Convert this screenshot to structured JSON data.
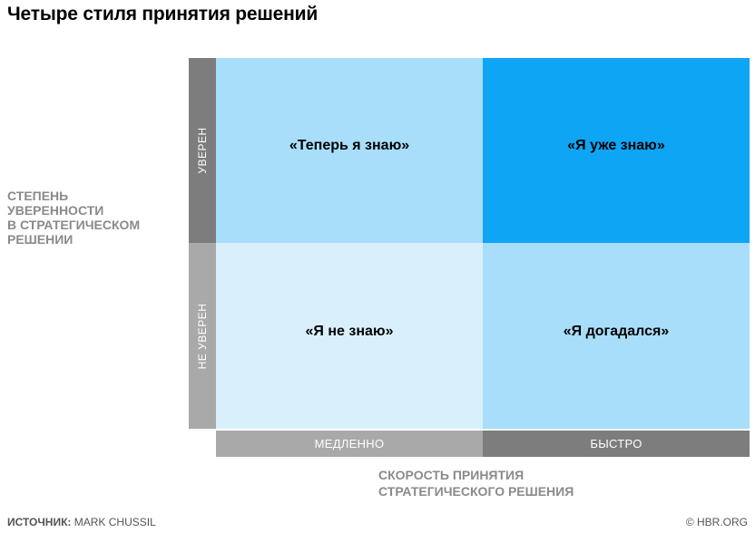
{
  "title": "Четыре стиля принятия решений",
  "y_axis": {
    "title_lines": [
      "СТЕПЕНЬ",
      "УВЕРЕННОСТИ",
      "В СТРАТЕГИЧЕСКОМ",
      "РЕШЕНИИ"
    ],
    "top_label": "УВЕРЕН",
    "bottom_label": "НЕ УВЕРЕН"
  },
  "x_axis": {
    "title_lines": [
      "СКОРОСТЬ ПРИНЯТИЯ",
      "СТРАТЕГИЧЕСКОГО РЕШЕНИЯ"
    ],
    "left_label": "МЕДЛЕННО",
    "right_label": "БЫСТРО"
  },
  "quadrants": {
    "top_left": "«Теперь я знаю»",
    "top_right": "«Я уже знаю»",
    "bottom_left": "«Я не знаю»",
    "bottom_right": "«Я догадался»"
  },
  "colors": {
    "light_blue": "#a8defa",
    "bright_blue": "#0ea5f5",
    "pale_blue": "#d9f0fc",
    "dark_gray": "#7d7d7d",
    "light_gray": "#a9a9a9"
  },
  "footer": {
    "source_label": "ИСТОЧНИК:",
    "source_name": " MARK CHUSSIL",
    "credit": "© HBR.ORG"
  }
}
